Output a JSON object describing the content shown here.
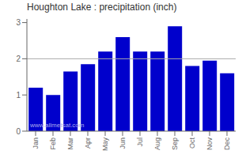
{
  "chart_data": {
    "type": "bar",
    "title": "Houghton Lake : precipitation (inch)",
    "categories": [
      "Jan",
      "Feb",
      "Mar",
      "Apr",
      "May",
      "Jun",
      "Jul",
      "Aug",
      "Sep",
      "Oct",
      "Nov",
      "Dec"
    ],
    "values": [
      1.2,
      1.0,
      1.65,
      1.85,
      2.2,
      2.6,
      2.2,
      2.2,
      2.9,
      1.8,
      1.95,
      1.6
    ],
    "color": "#0000CC",
    "ylim": [
      0,
      3.1
    ],
    "yticks": [
      0,
      1,
      2,
      3
    ],
    "grid": false,
    "reference_line": {
      "y": 2.0,
      "color": "#aaaaaa"
    },
    "annotations": [
      "www.allmetsat.com"
    ]
  }
}
